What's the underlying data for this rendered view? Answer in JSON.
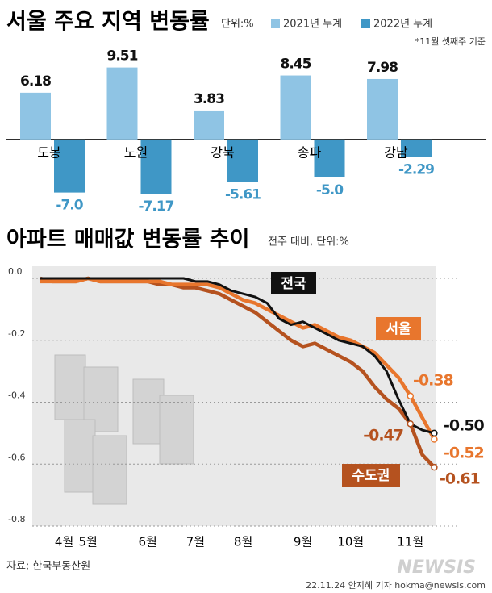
{
  "chart_data": [
    {
      "type": "bar",
      "title": "서울 주요 지역 변동률",
      "unit": "단위:%",
      "note": "*11월 셋째주 기준",
      "categories": [
        "도봉",
        "노원",
        "강북",
        "송파",
        "강남"
      ],
      "series": [
        {
          "name": "2021년 누계",
          "color": "#8fc4e4",
          "values": [
            6.18,
            9.51,
            3.83,
            8.45,
            7.98
          ]
        },
        {
          "name": "2022년 누계",
          "color": "#3f97c6",
          "values": [
            -7.0,
            -7.17,
            -5.61,
            -5.0,
            -2.29
          ],
          "value_labels": [
            "-7.0",
            "-7.17",
            "-5.61",
            "-5.0",
            "-2.29"
          ]
        }
      ],
      "ylim": [
        -8,
        10
      ]
    },
    {
      "type": "line",
      "title": "아파트 매매값 변동률 추이",
      "subtitle": "전주 대비, 단위:%",
      "categories": [
        null,
        null,
        "4월",
        null,
        "5월",
        null,
        null,
        null,
        null,
        "6월",
        null,
        null,
        null,
        "7월",
        null,
        null,
        null,
        "8월",
        null,
        null,
        null,
        null,
        "9월",
        null,
        null,
        null,
        "10월",
        null,
        null,
        null,
        null,
        "11월",
        null,
        null
      ],
      "series": [
        {
          "name": "전국",
          "color": "#111111",
          "values": [
            0,
            0,
            0,
            0,
            0,
            0,
            0,
            0,
            0,
            0,
            0,
            0,
            0,
            -0.01,
            -0.01,
            -0.02,
            -0.04,
            -0.05,
            -0.06,
            -0.08,
            -0.13,
            -0.15,
            -0.14,
            -0.16,
            -0.18,
            -0.2,
            -0.21,
            -0.22,
            -0.25,
            -0.3,
            -0.39,
            -0.47,
            -0.49,
            -0.5
          ],
          "value_labels": [
            null,
            null,
            null,
            null,
            null,
            null,
            null,
            null,
            null,
            null,
            null,
            null,
            null,
            null,
            null,
            null,
            null,
            null,
            null,
            null,
            null,
            null,
            null,
            null,
            null,
            null,
            null,
            null,
            null,
            null,
            null,
            null,
            null,
            "-0.50"
          ]
        },
        {
          "name": "서울",
          "color": "#e8762d",
          "values": [
            -0.01,
            -0.01,
            -0.01,
            -0.01,
            0,
            -0.01,
            -0.01,
            -0.01,
            -0.01,
            -0.01,
            -0.01,
            -0.02,
            -0.02,
            -0.02,
            -0.02,
            -0.03,
            -0.05,
            -0.07,
            -0.08,
            -0.1,
            -0.12,
            -0.14,
            -0.16,
            -0.15,
            -0.17,
            -0.19,
            -0.2,
            -0.22,
            -0.24,
            -0.28,
            -0.32,
            -0.38,
            -0.45,
            -0.52
          ],
          "value_labels": [
            null,
            null,
            null,
            null,
            null,
            null,
            null,
            null,
            null,
            null,
            null,
            null,
            null,
            null,
            null,
            null,
            null,
            null,
            null,
            null,
            null,
            null,
            null,
            null,
            null,
            null,
            null,
            null,
            null,
            null,
            null,
            "-0.38",
            null,
            "-0.52"
          ]
        },
        {
          "name": "수도권",
          "color": "#b5521f",
          "values": [
            0,
            -0.01,
            -0.01,
            -0.01,
            0,
            -0.01,
            -0.01,
            -0.01,
            -0.01,
            -0.01,
            -0.02,
            -0.02,
            -0.03,
            -0.03,
            -0.04,
            -0.05,
            -0.07,
            -0.09,
            -0.11,
            -0.14,
            -0.17,
            -0.2,
            -0.22,
            -0.21,
            -0.23,
            -0.25,
            -0.27,
            -0.3,
            -0.35,
            -0.39,
            -0.42,
            -0.47,
            -0.57,
            -0.61
          ],
          "value_labels": [
            null,
            null,
            null,
            null,
            null,
            null,
            null,
            null,
            null,
            null,
            null,
            null,
            null,
            null,
            null,
            null,
            null,
            null,
            null,
            null,
            null,
            null,
            null,
            null,
            null,
            null,
            null,
            null,
            null,
            null,
            null,
            "-0.47",
            null,
            "-0.61"
          ]
        }
      ],
      "ylim": [
        -0.8,
        0
      ],
      "yticks": [
        {
          "value": 0,
          "label": "0.0"
        },
        -0.2,
        -0.4,
        -0.6,
        -0.8
      ],
      "grid": true
    }
  ],
  "source": "자료: 한국부동산원",
  "credit": "22.11.24 안지혜 기자 hokma@newsis.com",
  "watermark": "NEWSIS"
}
